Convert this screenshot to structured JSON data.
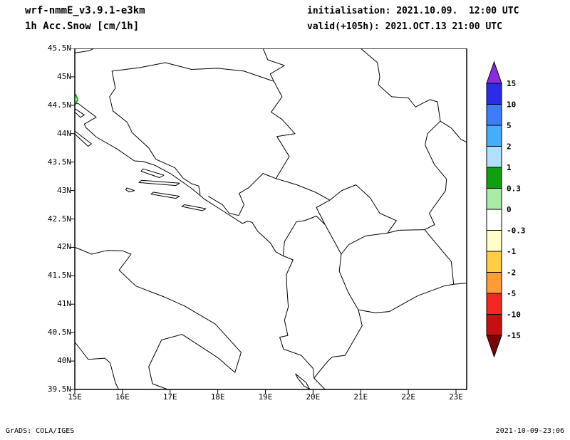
{
  "header": {
    "model": "wrf-nmmE_v3.9.1-e3km",
    "field": "1h Acc.Snow [cm/1h]",
    "init_label": "initialisation: 2021.10.09.  12:00 UTC",
    "valid_label": "valid(+105h): 2021.OCT.13 21:00 UTC"
  },
  "footer": {
    "left": "GrADS: COLA/IGES",
    "right": "2021-10-09-23:06"
  },
  "chart_data": {
    "type": "heatmap",
    "title": "1h Acc.Snow [cm/1h]",
    "model": "wrf-nmmE_v3.9.1-e3km",
    "initialisation": "2021.10.09. 12:00 UTC",
    "valid": "2021.OCT.13 21:00 UTC",
    "forecast_hour": "+105h",
    "x_axis": {
      "range_deg_east": [
        15,
        23.2
      ],
      "ticks": [
        "15E",
        "16E",
        "17E",
        "18E",
        "19E",
        "20E",
        "21E",
        "22E",
        "23E"
      ]
    },
    "y_axis": {
      "range_deg_north": [
        39.5,
        45.5
      ],
      "ticks": [
        "45.5N",
        "45N",
        "44.5N",
        "44N",
        "43.5N",
        "43N",
        "42.5N",
        "42N",
        "41.5N",
        "41N",
        "40.5N",
        "40N",
        "39.5N"
      ]
    },
    "colorbar": {
      "units": "cm/1h",
      "levels": [
        "15",
        "10",
        "5",
        "2",
        "1",
        "0.3",
        "0",
        "-0.3",
        "-1",
        "-2",
        "-5",
        "-10",
        "-15"
      ],
      "colors_top_to_bottom": [
        "#8A2BE2",
        "#2B2BEE",
        "#3D7BFF",
        "#41AEFF",
        "#B0E0FF",
        "#0FA00F",
        "#A8ECA8",
        "#FFFFFF",
        "#FFFFC8",
        "#FFCE45",
        "#FF9C33",
        "#F5281E",
        "#C80F0F",
        "#7A0707"
      ],
      "contour_color_at_level_0_3": "#00B400"
    },
    "field_values": "approximately 0 over the entire displayed domain; the map shows only coastlines and country borders of the Adriatic/Balkan region, with one tiny green 0.3-level contour touching the western frame edge near 44.6N",
    "grid": false,
    "legend_position": "right"
  }
}
